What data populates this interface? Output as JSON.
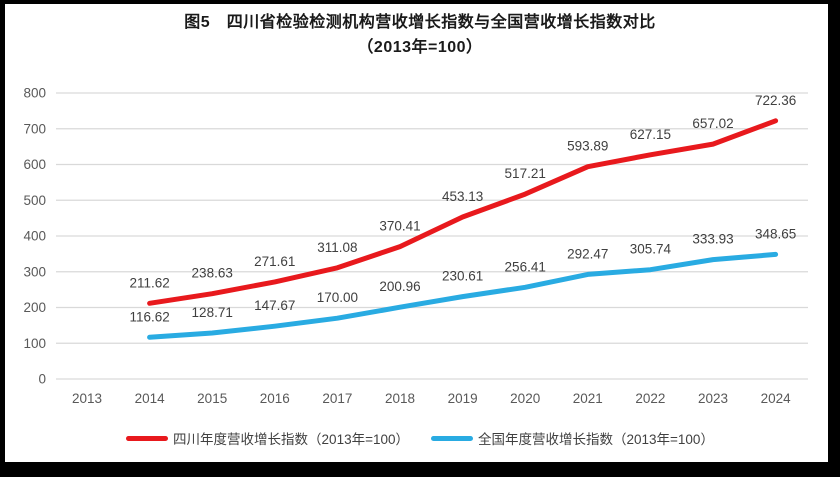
{
  "figure": {
    "title_line1": "图5　四川省检验检测机构营收增长指数与全国营收增长指数对比",
    "title_line2": "（2013年=100）"
  },
  "chart_data": {
    "type": "line",
    "title": "图5　四川省检验检测机构营收增长指数与全国营收增长指数对比（2013年=100）",
    "x": [
      "2013",
      "2014",
      "2015",
      "2016",
      "2017",
      "2018",
      "2019",
      "2020",
      "2021",
      "2022",
      "2023",
      "2024"
    ],
    "yticks": [
      0,
      100,
      200,
      300,
      400,
      500,
      600,
      700,
      800
    ],
    "ylim": [
      0,
      800
    ],
    "grid": true,
    "value_labels": true,
    "legend_position": "bottom",
    "colors": {
      "grid": "#d9d9d9",
      "tick_text": "#595959",
      "data_label_text": "#404040"
    },
    "series": [
      {
        "name": "四川年度营收增长指数（2013年=100）",
        "color": "#e8191d",
        "values": [
          null,
          211.62,
          238.63,
          271.61,
          311.08,
          370.41,
          453.13,
          517.21,
          593.89,
          627.15,
          657.02,
          722.36
        ]
      },
      {
        "name": "全国年度营收增长指数（2013年=100）",
        "color": "#29abe2",
        "values": [
          null,
          116.62,
          128.71,
          147.67,
          170.0,
          200.96,
          230.61,
          256.41,
          292.47,
          305.74,
          333.93,
          348.65
        ]
      }
    ]
  }
}
